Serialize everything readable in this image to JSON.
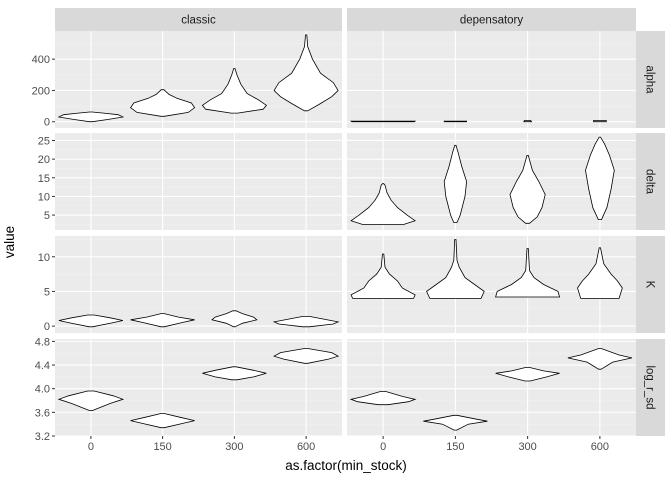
{
  "chart_data": {
    "type": "violin",
    "xlabel": "as.factor(min_stock)",
    "ylabel": "value",
    "categories": [
      "0",
      "150",
      "300",
      "600"
    ],
    "facet_columns": [
      "classic",
      "depensatory"
    ],
    "facet_rows": [
      "alpha",
      "delta",
      "K",
      "log_r_sd"
    ],
    "grid": true,
    "colors": {
      "panel_background": "#ebebeb",
      "grid_major": "#ffffff",
      "grid_minor": "#f2f2f2",
      "strip_background": "#d9d9d9",
      "violin_fill": "#ffffff",
      "violin_stroke": "#000000"
    },
    "rows": [
      {
        "name": "alpha",
        "ylim": [
          -40,
          580
        ],
        "yticks": [
          0,
          200,
          400
        ],
        "tick_labels": [
          "0",
          "200",
          "400"
        ],
        "minor_ticks": [
          100,
          300,
          500
        ],
        "panels": {
          "classic": [
            {
              "x": "0",
              "profile": [
                [
                  0,
                  0.05
                ],
                [
                  15,
                  0.55
                ],
                [
                  30,
                  1
                ],
                [
                  45,
                  0.85
                ],
                [
                  55,
                  0.4
                ],
                [
                  62,
                  0.04
                ]
              ]
            },
            {
              "x": "150",
              "profile": [
                [
                  35,
                  0.05
                ],
                [
                  60,
                  0.8
                ],
                [
                  90,
                  1
                ],
                [
                  120,
                  0.9
                ],
                [
                  150,
                  0.45
                ],
                [
                  175,
                  0.2
                ],
                [
                  205,
                  0.04
                ]
              ]
            },
            {
              "x": "300",
              "profile": [
                [
                  55,
                  0.1
                ],
                [
                  80,
                  0.9
                ],
                [
                  105,
                  1
                ],
                [
                  140,
                  0.75
                ],
                [
                  180,
                  0.4
                ],
                [
                  240,
                  0.2
                ],
                [
                  300,
                  0.08
                ],
                [
                  340,
                  0.02
                ]
              ]
            },
            {
              "x": "600",
              "profile": [
                [
                  70,
                  0.05
                ],
                [
                  110,
                  0.4
                ],
                [
                  160,
                  0.8
                ],
                [
                  200,
                  1
                ],
                [
                  250,
                  0.85
                ],
                [
                  310,
                  0.45
                ],
                [
                  400,
                  0.2
                ],
                [
                  480,
                  0.05
                ],
                [
                  555,
                  0.02
                ]
              ]
            }
          ],
          "depensatory": [
            {
              "x": "0",
              "profile": [
                [
                  0,
                  0.98
                ],
                [
                  4,
                  1
                ]
              ]
            },
            {
              "x": "150",
              "profile": [
                [
                  0,
                  0.35
                ],
                [
                  4,
                  0.35
                ]
              ]
            },
            {
              "x": "300",
              "profile": [
                [
                  0,
                  0.12
                ],
                [
                  8,
                  0.1
                ]
              ]
            },
            {
              "x": "600",
              "profile": [
                [
                  0,
                  0.2
                ],
                [
                  8,
                  0.2
                ]
              ]
            }
          ]
        }
      },
      {
        "name": "delta",
        "ylim": [
          1,
          27
        ],
        "yticks": [
          5,
          10,
          15,
          20,
          25
        ],
        "tick_labels": [
          "5",
          "10",
          "15",
          "20",
          "25"
        ],
        "minor_ticks": [
          2.5,
          7.5,
          12.5,
          17.5,
          22.5
        ],
        "panels": {
          "classic": [],
          "depensatory": [
            {
              "x": "0",
              "profile": [
                [
                  2.5,
                  0.65
                ],
                [
                  3.5,
                  1
                ],
                [
                  5,
                  0.75
                ],
                [
                  7,
                  0.45
                ],
                [
                  9,
                  0.25
                ],
                [
                  11,
                  0.12
                ],
                [
                  13,
                  0.06
                ],
                [
                  13.4,
                  0.01
                ]
              ]
            },
            {
              "x": "150",
              "profile": [
                [
                  3,
                  0.05
                ],
                [
                  5,
                  0.15
                ],
                [
                  10,
                  0.3
                ],
                [
                  14,
                  0.35
                ],
                [
                  18,
                  0.2
                ],
                [
                  22,
                  0.08
                ],
                [
                  23.7,
                  0.01
                ]
              ]
            },
            {
              "x": "300",
              "profile": [
                [
                  2.8,
                  0.06
                ],
                [
                  4.5,
                  0.3
                ],
                [
                  7,
                  0.45
                ],
                [
                  10.5,
                  0.55
                ],
                [
                  14,
                  0.35
                ],
                [
                  17,
                  0.15
                ],
                [
                  21,
                  0.02
                ]
              ]
            },
            {
              "x": "600",
              "profile": [
                [
                  3.8,
                  0.05
                ],
                [
                  7,
                  0.22
                ],
                [
                  12,
                  0.35
                ],
                [
                  17,
                  0.45
                ],
                [
                  21,
                  0.3
                ],
                [
                  24,
                  0.15
                ],
                [
                  25.9,
                  0.02
                ]
              ]
            }
          ]
        }
      },
      {
        "name": "K",
        "ylim": [
          -1,
          13
        ],
        "yticks": [
          0,
          5,
          10
        ],
        "tick_labels": [
          "0",
          "5",
          "10"
        ],
        "minor_ticks": [
          2.5,
          7.5,
          12.5
        ],
        "panels": {
          "classic": [
            {
              "x": "0",
              "profile": [
                [
                  -0.1,
                  0.05
                ],
                [
                  0.5,
                  0.7
                ],
                [
                  0.8,
                  1
                ],
                [
                  1.2,
                  0.6
                ],
                [
                  1.6,
                  0.1
                ]
              ]
            },
            {
              "x": "150",
              "profile": [
                [
                  -0.1,
                  0.05
                ],
                [
                  0.5,
                  0.6
                ],
                [
                  0.9,
                  1
                ],
                [
                  1.3,
                  0.5
                ],
                [
                  1.8,
                  0.05
                ]
              ]
            },
            {
              "x": "300",
              "profile": [
                [
                  -0.1,
                  0.02
                ],
                [
                  0.4,
                  0.25
                ],
                [
                  0.9,
                  0.7
                ],
                [
                  1.3,
                  0.6
                ],
                [
                  1.8,
                  0.25
                ],
                [
                  2.2,
                  0.05
                ]
              ]
            },
            {
              "x": "600",
              "profile": [
                [
                  -0.1,
                  0.1
                ],
                [
                  0.3,
                  0.85
                ],
                [
                  0.6,
                  1
                ],
                [
                  1,
                  0.55
                ],
                [
                  1.4,
                  0.1
                ]
              ]
            }
          ],
          "depensatory": [
            {
              "x": "0",
              "profile": [
                [
                  4,
                  0.95
                ],
                [
                  4.5,
                  1
                ],
                [
                  5.5,
                  0.6
                ],
                [
                  6.5,
                  0.45
                ],
                [
                  7.5,
                  0.2
                ],
                [
                  8.5,
                  0.06
                ],
                [
                  10.4,
                  0.02
                ]
              ]
            },
            {
              "x": "150",
              "profile": [
                [
                  4,
                  0.8
                ],
                [
                  5,
                  0.9
                ],
                [
                  6,
                  0.6
                ],
                [
                  7,
                  0.3
                ],
                [
                  8.5,
                  0.12
                ],
                [
                  9.5,
                  0.05
                ],
                [
                  12.5,
                  0.02
                ]
              ]
            },
            {
              "x": "300",
              "profile": [
                [
                  4.2,
                  1
                ],
                [
                  5,
                  0.95
                ],
                [
                  6,
                  0.5
                ],
                [
                  7,
                  0.2
                ],
                [
                  8,
                  0.06
                ],
                [
                  11.2,
                  0.02
                ]
              ]
            },
            {
              "x": "600",
              "profile": [
                [
                  4,
                  0.6
                ],
                [
                  5.5,
                  0.7
                ],
                [
                  6.5,
                  0.55
                ],
                [
                  7.5,
                  0.35
                ],
                [
                  9,
                  0.12
                ],
                [
                  11.3,
                  0.02
                ]
              ]
            }
          ]
        }
      },
      {
        "name": "log_r_sd",
        "ylim": [
          3.2,
          4.84
        ],
        "yticks": [
          3.2,
          3.6,
          4.0,
          4.4,
          4.8
        ],
        "tick_labels": [
          "3.2",
          "3.6",
          "4.0",
          "4.4",
          "4.8"
        ],
        "minor_ticks": [
          3.4,
          3.8,
          4.2,
          4.6
        ],
        "panels": {
          "classic": [
            {
              "x": "0",
              "profile": [
                [
                  3.63,
                  0.04
                ],
                [
                  3.75,
                  0.6
                ],
                [
                  3.82,
                  1
                ],
                [
                  3.88,
                  0.7
                ],
                [
                  3.96,
                  0.1
                ]
              ]
            },
            {
              "x": "150",
              "profile": [
                [
                  3.34,
                  0.05
                ],
                [
                  3.41,
                  0.6
                ],
                [
                  3.46,
                  1
                ],
                [
                  3.51,
                  0.6
                ],
                [
                  3.58,
                  0.05
                ]
              ]
            },
            {
              "x": "300",
              "profile": [
                [
                  4.15,
                  0.08
                ],
                [
                  4.2,
                  0.6
                ],
                [
                  4.26,
                  1
                ],
                [
                  4.31,
                  0.6
                ],
                [
                  4.37,
                  0.05
                ]
              ]
            },
            {
              "x": "600",
              "profile": [
                [
                  4.43,
                  0.05
                ],
                [
                  4.5,
                  0.7
                ],
                [
                  4.55,
                  1
                ],
                [
                  4.61,
                  0.8
                ],
                [
                  4.68,
                  0.05
                ]
              ]
            }
          ],
          "depensatory": [
            {
              "x": "0",
              "profile": [
                [
                  3.73,
                  0.15
                ],
                [
                  3.78,
                  0.8
                ],
                [
                  3.82,
                  1
                ],
                [
                  3.87,
                  0.6
                ],
                [
                  3.95,
                  0.1
                ]
              ]
            },
            {
              "x": "150",
              "profile": [
                [
                  3.3,
                  0.04
                ],
                [
                  3.4,
                  0.4
                ],
                [
                  3.45,
                  1
                ],
                [
                  3.49,
                  0.6
                ],
                [
                  3.55,
                  0.05
                ]
              ]
            },
            {
              "x": "300",
              "profile": [
                [
                  4.13,
                  0.08
                ],
                [
                  4.2,
                  0.6
                ],
                [
                  4.26,
                  1
                ],
                [
                  4.3,
                  0.5
                ],
                [
                  4.36,
                  0.05
                ]
              ]
            },
            {
              "x": "600",
              "profile": [
                [
                  4.33,
                  0.04
                ],
                [
                  4.45,
                  0.4
                ],
                [
                  4.52,
                  1
                ],
                [
                  4.57,
                  0.6
                ],
                [
                  4.68,
                  0.04
                ]
              ]
            }
          ]
        }
      }
    ]
  }
}
